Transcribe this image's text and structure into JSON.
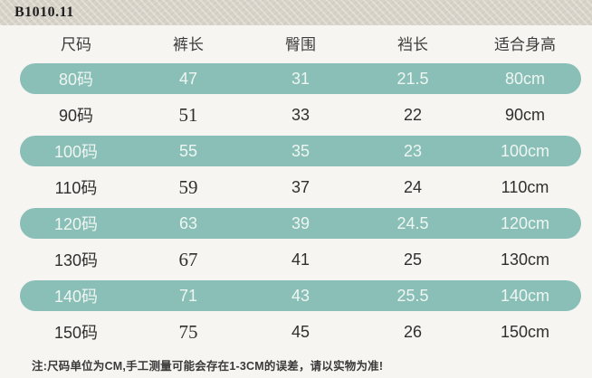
{
  "band": {
    "label": "B1010.11"
  },
  "colors": {
    "accent": "#89bfb7",
    "pill_text": "#eff6f2",
    "band_bg": "#d8d3c9",
    "page_bg": "#f6f5f1",
    "text_dark": "#2f2f2f"
  },
  "table": {
    "headers": [
      "尺码",
      "裤长",
      "臀围",
      "裆长",
      "适合身高"
    ],
    "rows": [
      {
        "highlight": true,
        "cells": [
          "80码",
          "47",
          "31",
          "21.5",
          "80cm"
        ]
      },
      {
        "highlight": false,
        "cells": [
          "90码",
          "51",
          "33",
          "22",
          "90cm"
        ]
      },
      {
        "highlight": true,
        "cells": [
          "100码",
          "55",
          "35",
          "23",
          "100cm"
        ]
      },
      {
        "highlight": false,
        "cells": [
          "110码",
          "59",
          "37",
          "24",
          "110cm"
        ]
      },
      {
        "highlight": true,
        "cells": [
          "120码",
          "63",
          "39",
          "24.5",
          "120cm"
        ]
      },
      {
        "highlight": false,
        "cells": [
          "130码",
          "67",
          "41",
          "25",
          "130cm"
        ]
      },
      {
        "highlight": true,
        "cells": [
          "140码",
          "71",
          "43",
          "25.5",
          "140cm"
        ]
      },
      {
        "highlight": false,
        "cells": [
          "150码",
          "75",
          "45",
          "26",
          "150cm"
        ]
      }
    ]
  },
  "note": "注:尺码单位为CM,手工测量可能会存在1-3CM的误差，请以实物为准!",
  "chart_data": {
    "type": "table",
    "title": "B1010.11",
    "columns": [
      "尺码",
      "裤长",
      "臀围",
      "裆长",
      "适合身高"
    ],
    "rows": [
      [
        "80码",
        47,
        31,
        21.5,
        "80cm"
      ],
      [
        "90码",
        51,
        33,
        22,
        "90cm"
      ],
      [
        "100码",
        55,
        35,
        23,
        "100cm"
      ],
      [
        "110码",
        59,
        37,
        24,
        "110cm"
      ],
      [
        "120码",
        63,
        39,
        24.5,
        "120cm"
      ],
      [
        "130码",
        67,
        41,
        25,
        "130cm"
      ],
      [
        "140码",
        71,
        43,
        25.5,
        "140cm"
      ],
      [
        "150码",
        75,
        45,
        26,
        "150cm"
      ]
    ]
  }
}
